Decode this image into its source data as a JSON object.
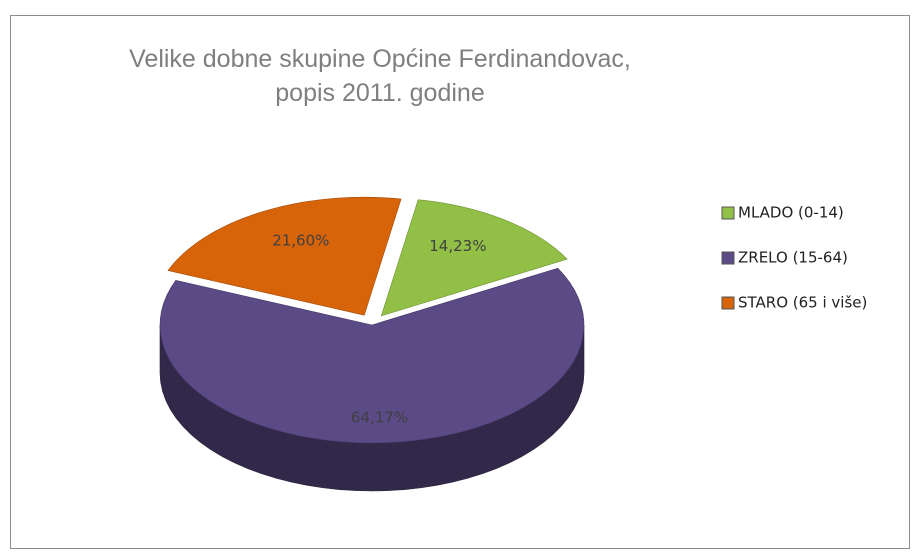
{
  "chart_data": {
    "type": "pie3d",
    "title": "Velike dobne skupine Općine Ferdinandovac, popis 2011. godine",
    "categories": [
      "MLADO (0-14)",
      "ZRELO (15-64)",
      "STARO (65 i više)"
    ],
    "values": [
      14.23,
      64.17,
      21.6
    ],
    "value_labels": [
      "14,23%",
      "64,17%",
      "21,60%"
    ],
    "colors": [
      "#92c047",
      "#5a4a86",
      "#d8640a"
    ],
    "legend": "right"
  }
}
